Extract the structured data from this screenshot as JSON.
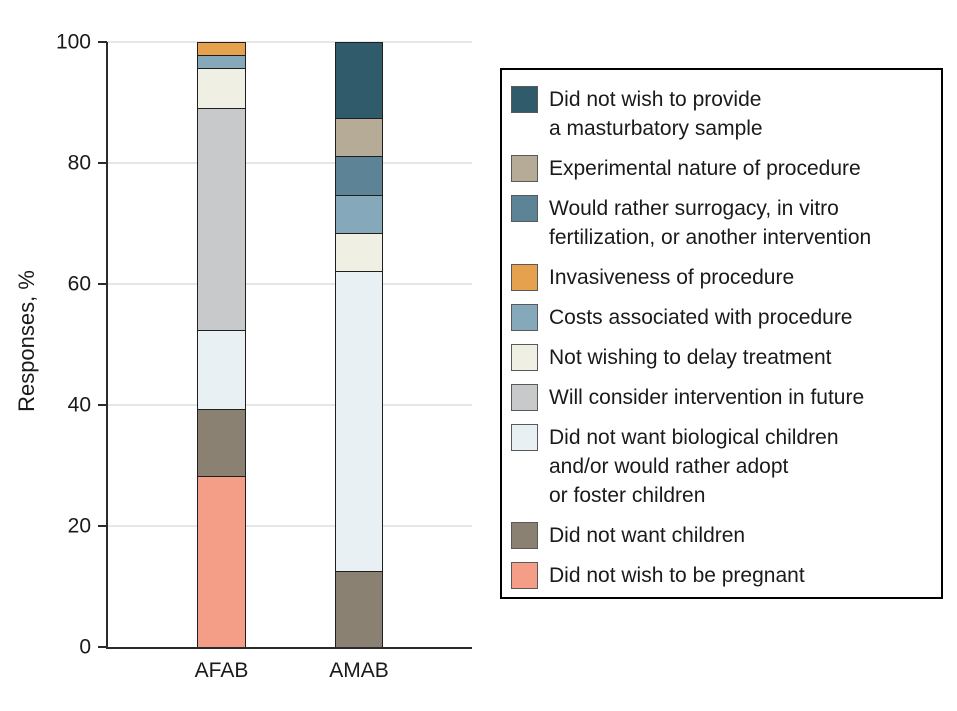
{
  "colors": {
    "background": "#FFFFFF",
    "axis": "#2B2B2B",
    "grid": "#E6E6E6",
    "text": "#1A1A1A",
    "bar_outline": "#1F1F1F",
    "legend_border": "#000000",
    "swatch_border": "#595959"
  },
  "chart_data": {
    "type": "bar",
    "subtype": "stacked-vertical",
    "title": "",
    "ylabel": "Responses, %",
    "xlabel": "",
    "ylim": [
      0,
      100
    ],
    "yticks": [
      0,
      20,
      40,
      60,
      80,
      100
    ],
    "grid": "horizontal",
    "legend_position": "right",
    "categories": [
      "AFAB",
      "AMAB"
    ],
    "series": [
      {
        "name": "Did not wish to be pregnant",
        "color": "#F49E88",
        "values": [
          28.5,
          0
        ]
      },
      {
        "name": "Did not want children",
        "color": "#8A8173",
        "values": [
          11,
          12.5
        ]
      },
      {
        "name": "Did not want biological children and/or would rather adopt or foster children",
        "color": "#E9F0F4",
        "values": [
          13,
          50
        ]
      },
      {
        "name": "Will consider intervention in future",
        "color": "#C8C9CB",
        "values": [
          37,
          0
        ]
      },
      {
        "name": "Not wishing to delay treatment",
        "color": "#F0EFE3",
        "values": [
          6.5,
          6.25
        ]
      },
      {
        "name": "Costs associated with procedure",
        "color": "#85A9BA",
        "values": [
          2,
          6.25
        ]
      },
      {
        "name": "Invasiveness of procedure",
        "color": "#E6A14F",
        "values": [
          2,
          0
        ]
      },
      {
        "name": "Would rather surrogacy, in vitro fertilization, or another intervention",
        "color": "#5D8496",
        "values": [
          0,
          6.25
        ]
      },
      {
        "name": "Experimental nature of procedure",
        "color": "#B5AB97",
        "values": [
          0,
          6.25
        ]
      },
      {
        "name": "Did not wish to provide a masturbatory sample",
        "color": "#2F5B6A",
        "values": [
          0,
          12.5
        ]
      }
    ],
    "legend": [
      {
        "color": "#2F5B6A",
        "label": "Did not wish to provide\na masturbatory sample"
      },
      {
        "color": "#B5AB97",
        "label": "Experimental nature of procedure"
      },
      {
        "color": "#5D8496",
        "label": "Would rather surrogacy, in vitro\nfertilization, or another intervention"
      },
      {
        "color": "#E6A14F",
        "label": "Invasiveness of procedure"
      },
      {
        "color": "#85A9BA",
        "label": "Costs associated with procedure"
      },
      {
        "color": "#F0EFE3",
        "label": "Not wishing to delay treatment"
      },
      {
        "color": "#C8C9CB",
        "label": "Will consider intervention in future"
      },
      {
        "color": "#E9F0F4",
        "label": "Did not want biological children\nand/or would rather adopt\nor foster children"
      },
      {
        "color": "#8A8173",
        "label": "Did not want children"
      },
      {
        "color": "#F49E88",
        "label": "Did not wish to be pregnant"
      }
    ]
  }
}
